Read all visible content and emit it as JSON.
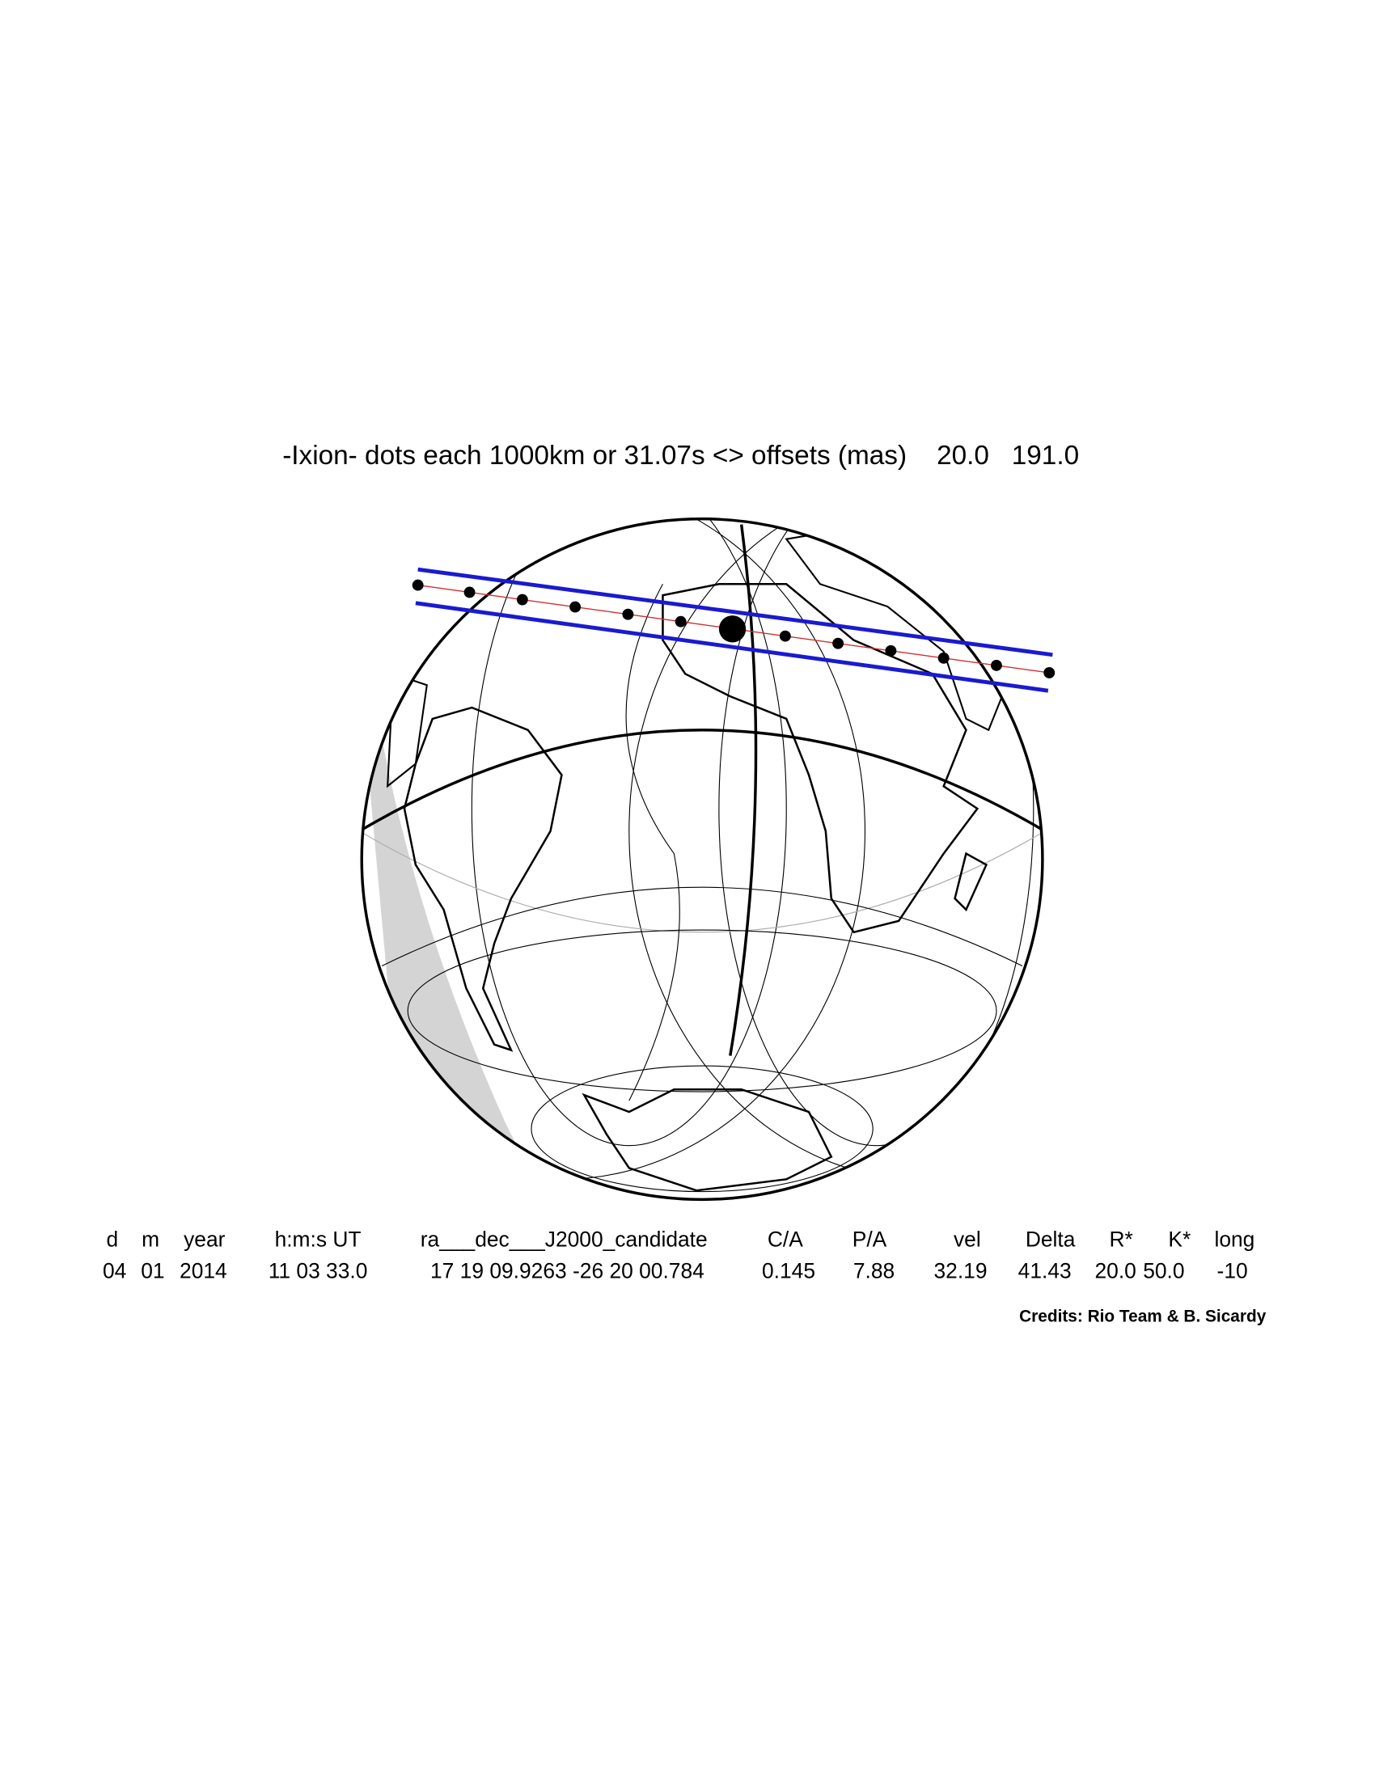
{
  "header": {
    "title": "-Ixion- dots each 1000km or 31.07s <> offsets (mas)    20.0   191.0"
  },
  "table": {
    "columns": [
      "d",
      "m",
      "year",
      "h:m:s UT",
      "ra___dec___J2000_candidate",
      "C/A",
      "P/A",
      "vel",
      "Delta",
      "R*",
      "K*",
      "long"
    ],
    "rows": [
      [
        "04",
        "01",
        "2014",
        "11 03 33.0",
        "17 19 09.9263 -26 20 00.784",
        "0.145",
        "7.88",
        "32.19",
        "41.43",
        "20.0",
        "50.0",
        "-10"
      ]
    ]
  },
  "footer": {
    "credits": "Credits: Rio Team & B. Sicardy"
  }
}
